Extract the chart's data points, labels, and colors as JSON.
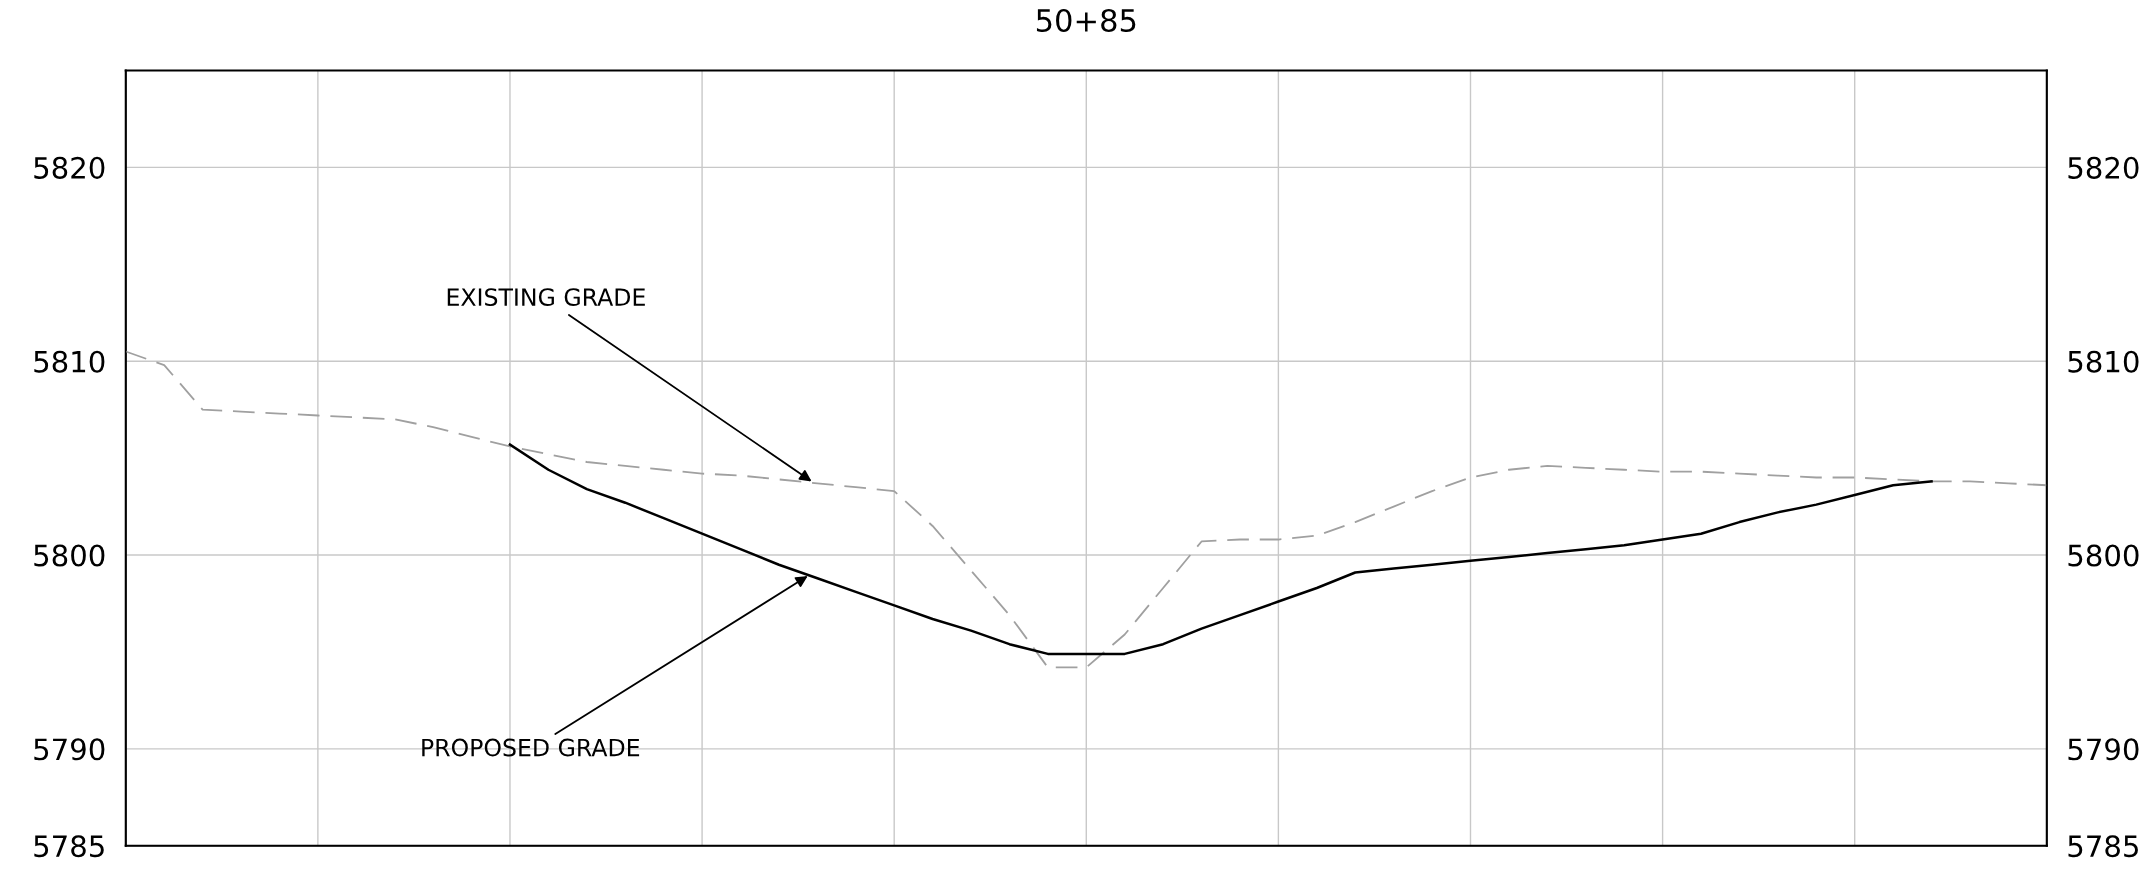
{
  "chart_data": {
    "type": "line",
    "title": "50+85",
    "categories": [
      null,
      null,
      null,
      null,
      null,
      null,
      null,
      null,
      null,
      null,
      null,
      null,
      null,
      null,
      null,
      null,
      null,
      null,
      null,
      null,
      null,
      null,
      null,
      null,
      null,
      null,
      null,
      null,
      null,
      null,
      null,
      null,
      null,
      null,
      null,
      null,
      null,
      null,
      null,
      null,
      null,
      null,
      null,
      null,
      null,
      null,
      null,
      null,
      null,
      null,
      null
    ],
    "ylim": [
      5785,
      5825
    ],
    "yticks": [
      5785,
      5790,
      5800,
      5810,
      5820
    ],
    "y2lim": [
      5785,
      5825
    ],
    "y2ticks": [
      5785,
      5790,
      5800,
      5810,
      5820
    ],
    "grid": true,
    "series": [
      {
        "color": "#a0a0a0",
        "line_style": "dashed",
        "values": [
          5810.5,
          5809.8,
          5807.5,
          5807.4,
          5807.3,
          5807.2,
          5807.1,
          5807.0,
          5806.6,
          5806.1,
          5805.6,
          5805.2,
          5804.8,
          5804.6,
          5804.4,
          5804.2,
          5804.1,
          5803.9,
          5803.7,
          5803.5,
          5803.3,
          5801.5,
          5799.2,
          5796.9,
          5794.2,
          5794.2,
          5795.9,
          5798.3,
          5800.7,
          5800.8,
          5800.8,
          5801.0,
          5801.7,
          5802.5,
          5803.3,
          5804.0,
          5804.4,
          5804.6,
          5804.5,
          5804.4,
          5804.3,
          5804.3,
          5804.2,
          5804.1,
          5804.0,
          5804.0,
          5803.9,
          5803.8,
          5803.8,
          5803.7,
          5803.6
        ]
      },
      {
        "color": "#000000",
        "line_style": "solid",
        "values": [
          null,
          null,
          null,
          null,
          null,
          null,
          null,
          null,
          null,
          null,
          5805.7,
          5804.4,
          5803.4,
          5802.7,
          5801.9,
          5801.1,
          5800.3,
          5799.5,
          5798.8,
          5798.1,
          5797.4,
          5796.7,
          5796.1,
          5795.4,
          5794.9,
          5794.9,
          5794.9,
          5795.4,
          5796.2,
          5796.9,
          5797.6,
          5798.3,
          5799.1,
          5799.3,
          5799.5,
          5799.7,
          5799.9,
          5800.1,
          5800.3,
          5800.5,
          5800.8,
          5801.1,
          5801.7,
          5802.2,
          5802.6,
          5803.1,
          5803.6,
          5803.8,
          null,
          null,
          null
        ]
      }
    ],
    "annotations": [
      "EXISTING GRADE",
      "PROPOSED GRADE"
    ]
  }
}
